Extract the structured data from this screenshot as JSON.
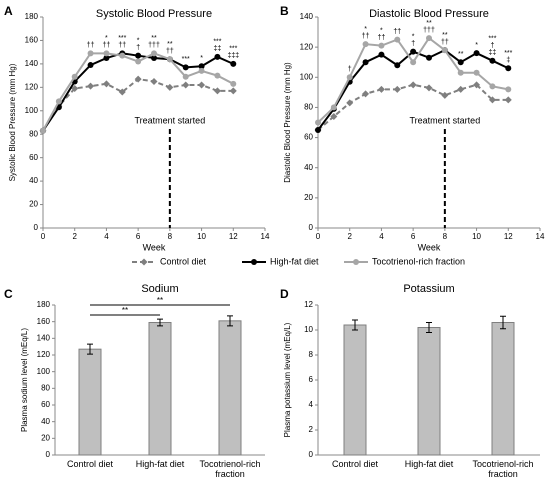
{
  "chart_data": [
    {
      "type": "line",
      "panel": "A",
      "title": "Systolic Blood Pressure",
      "x_label": "Week",
      "y_label": "Systolic Blood Pressure (mm Hg)",
      "x": [
        0,
        1,
        2,
        3,
        4,
        5,
        6,
        7,
        8,
        9,
        10,
        11,
        12
      ],
      "series": [
        {
          "name": "Control diet",
          "color": "#7f7f7f",
          "linestyle": "dashed",
          "marker": "diamond",
          "values": [
            83,
            104,
            119,
            121,
            123,
            116,
            127,
            125,
            120,
            122,
            122,
            117,
            117
          ]
        },
        {
          "name": "High-fat diet",
          "color": "#000000",
          "linestyle": "solid",
          "marker": "circle",
          "values": [
            83,
            103,
            125,
            139,
            145,
            149,
            147,
            145,
            144,
            137,
            138,
            146,
            140
          ]
        },
        {
          "name": "Tocotrienol-rich fraction",
          "color": "#a6a6a6",
          "linestyle": "solid",
          "marker": "circle",
          "values": [
            83,
            108,
            129,
            149,
            149,
            147,
            142,
            149,
            144,
            129,
            134,
            130,
            123
          ]
        }
      ],
      "xlim": [
        0,
        14
      ],
      "xticks": [
        0,
        2,
        4,
        6,
        8,
        10,
        12,
        14
      ],
      "ylim": [
        0,
        180
      ],
      "yticks": [
        0,
        20,
        40,
        60,
        80,
        100,
        120,
        140,
        160,
        180
      ],
      "treatment": {
        "week": 8,
        "label": "Treatment started"
      },
      "significance": [
        {
          "week": 3,
          "labels": [
            "††"
          ]
        },
        {
          "week": 4,
          "labels": [
            "*",
            "††"
          ]
        },
        {
          "week": 5,
          "labels": [
            "***",
            "††"
          ]
        },
        {
          "week": 6,
          "labels": [
            "*",
            "†"
          ]
        },
        {
          "week": 7,
          "labels": [
            "**",
            "†††"
          ]
        },
        {
          "week": 8,
          "labels": [
            "**",
            "††"
          ]
        },
        {
          "week": 9,
          "labels": [
            "***"
          ]
        },
        {
          "week": 10,
          "labels": [
            "*"
          ]
        },
        {
          "week": 11,
          "labels": [
            "***",
            "‡‡"
          ]
        },
        {
          "week": 12,
          "labels": [
            "***",
            "‡‡‡"
          ]
        }
      ]
    },
    {
      "type": "line",
      "panel": "B",
      "title": "Diastolic Blood Pressure",
      "x_label": "Week",
      "y_label": "Diastolic Blood Pressure (mm Hg)",
      "x": [
        0,
        1,
        2,
        3,
        4,
        5,
        6,
        7,
        8,
        9,
        10,
        11,
        12
      ],
      "series": [
        {
          "name": "Control diet",
          "color": "#7f7f7f",
          "linestyle": "dashed",
          "marker": "diamond",
          "values": [
            65,
            74,
            83,
            89,
            92,
            92,
            95,
            93,
            88,
            92,
            95,
            85,
            85
          ]
        },
        {
          "name": "High-fat diet",
          "color": "#000000",
          "linestyle": "solid",
          "marker": "circle",
          "values": [
            65,
            79,
            97,
            110,
            115,
            108,
            117,
            113,
            118,
            110,
            116,
            111,
            106
          ]
        },
        {
          "name": "Tocotrienol-rich fraction",
          "color": "#a6a6a6",
          "linestyle": "solid",
          "marker": "circle",
          "values": [
            70,
            80,
            100,
            122,
            121,
            125,
            110,
            126,
            118,
            103,
            103,
            94,
            92
          ]
        }
      ],
      "xlim": [
        0,
        14
      ],
      "xticks": [
        0,
        2,
        4,
        6,
        8,
        10,
        12,
        14
      ],
      "ylim": [
        0,
        140
      ],
      "yticks": [
        0,
        20,
        40,
        60,
        80,
        100,
        120,
        140
      ],
      "treatment": {
        "week": 8,
        "label": "Treatment started"
      },
      "significance": [
        {
          "week": 2,
          "labels": [
            "†"
          ]
        },
        {
          "week": 3,
          "labels": [
            "*",
            "††"
          ]
        },
        {
          "week": 4,
          "labels": [
            "*",
            "††"
          ]
        },
        {
          "week": 5,
          "labels": [
            "††"
          ]
        },
        {
          "week": 6,
          "labels": [
            "*",
            "†"
          ]
        },
        {
          "week": 7,
          "labels": [
            "**",
            "†††"
          ]
        },
        {
          "week": 8,
          "labels": [
            "**",
            "††"
          ]
        },
        {
          "week": 9,
          "labels": [
            "**"
          ]
        },
        {
          "week": 10,
          "labels": [
            "*"
          ]
        },
        {
          "week": 11,
          "labels": [
            "***",
            "†",
            "‡‡"
          ]
        },
        {
          "week": 12,
          "labels": [
            "***",
            "‡"
          ]
        }
      ]
    },
    {
      "type": "bar",
      "panel": "C",
      "title": "Sodium",
      "y_label": "Plasma sodium level (mEq/L)",
      "categories": [
        "Control diet",
        "High-fat diet",
        "Tocotrienol-rich fraction"
      ],
      "values": [
        127,
        159,
        161
      ],
      "errors": [
        6,
        4,
        6
      ],
      "color": "#bfbfbf",
      "ylim": [
        0,
        180
      ],
      "yticks": [
        0,
        20,
        40,
        60,
        80,
        100,
        120,
        140,
        160,
        180
      ],
      "comparisons": [
        {
          "from": 0,
          "to": 1,
          "label": "**"
        },
        {
          "from": 0,
          "to": 2,
          "label": "**"
        }
      ]
    },
    {
      "type": "bar",
      "panel": "D",
      "title": "Potassium",
      "y_label": "Plasma potassium level (mEq/L)",
      "categories": [
        "Control diet",
        "High-fat diet",
        "Tocotrienol-rich fraction"
      ],
      "values": [
        10.4,
        10.2,
        10.6
      ],
      "errors": [
        0.4,
        0.4,
        0.5
      ],
      "color": "#bfbfbf",
      "ylim": [
        0,
        12
      ],
      "yticks": [
        0,
        2,
        4,
        6,
        8,
        10,
        12
      ]
    }
  ]
}
